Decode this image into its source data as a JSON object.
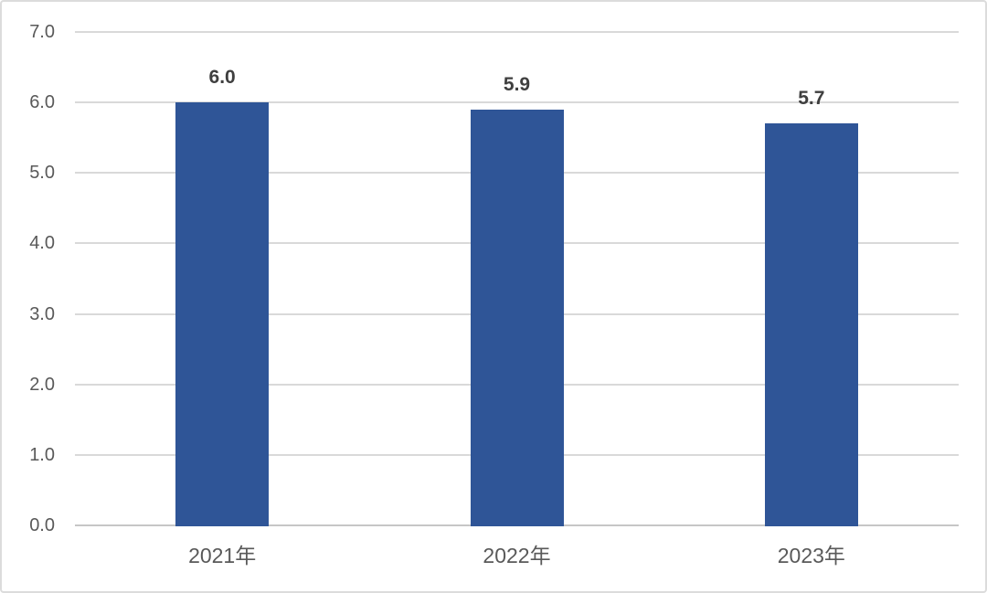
{
  "chart_data": {
    "type": "bar",
    "categories": [
      "2021年",
      "2022年",
      "2023年"
    ],
    "values": [
      6.0,
      5.9,
      5.7
    ],
    "data_labels": [
      "6.0",
      "5.9",
      "5.7"
    ],
    "title": "",
    "xlabel": "",
    "ylabel": "",
    "ylim": [
      0.0,
      7.0
    ],
    "ytick_interval": 1.0,
    "ytick_labels": [
      "0.0",
      "1.0",
      "2.0",
      "3.0",
      "4.0",
      "5.0",
      "6.0",
      "7.0"
    ],
    "grid": true,
    "legend": false,
    "colors": {
      "bar": "#2F5597",
      "gridline": "#D9D9D9",
      "axis_line": "#C6C6C6",
      "ytick_text": "#595959",
      "xtick_text": "#595959",
      "data_label_text": "#3F3F3F",
      "frame_border": "#DCDCDC",
      "background": "#FFFFFF"
    }
  }
}
